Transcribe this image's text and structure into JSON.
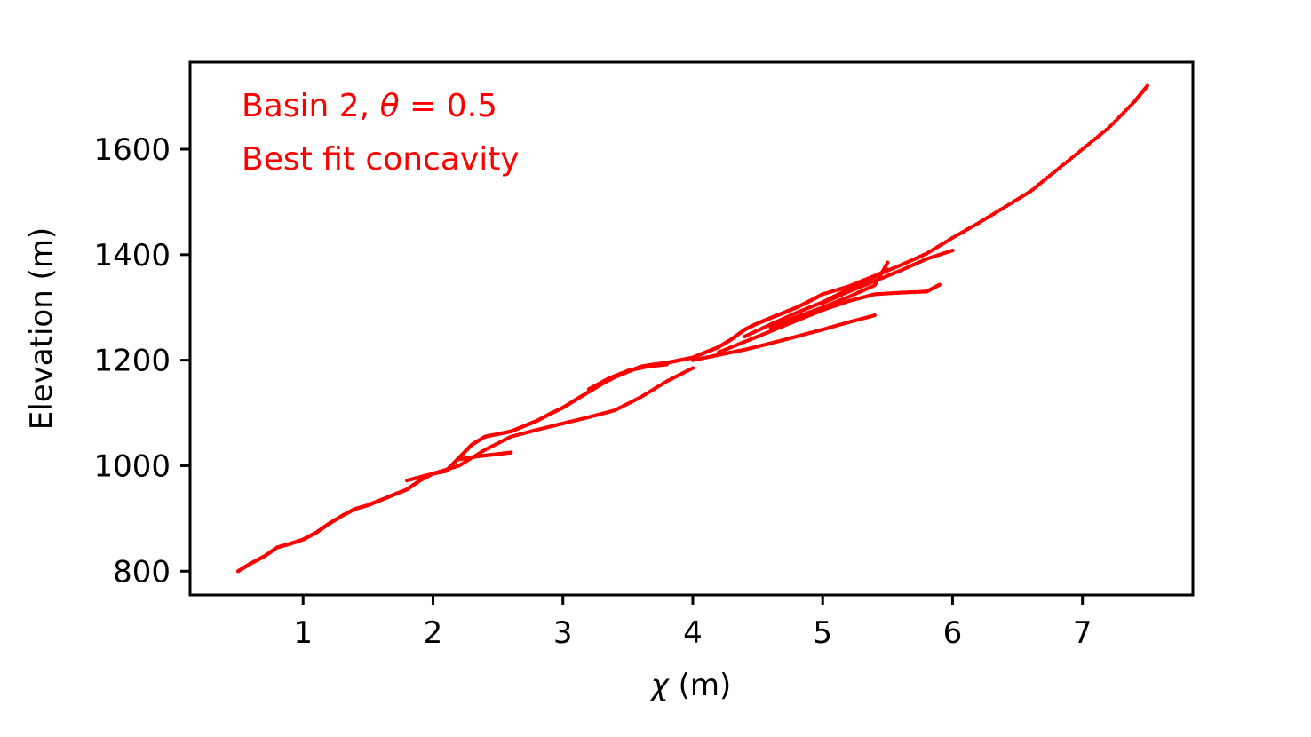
{
  "chart_data": {
    "type": "scatter",
    "xlabel_symbol": "χ",
    "xlabel_unit": " (m)",
    "ylabel": "Elevation (m)",
    "xlim": [
      0.13,
      7.85
    ],
    "ylim": [
      755,
      1765
    ],
    "xticks": [
      1,
      2,
      3,
      4,
      5,
      6,
      7
    ],
    "yticks": [
      800,
      1000,
      1200,
      1400,
      1600
    ],
    "grid": false,
    "marker_color": "#ff0000",
    "annotations": {
      "line1_prefix": "Basin 2, ",
      "line1_symbol": "θ",
      "line1_suffix": " = 0.5",
      "line2": "Best fit concavity"
    },
    "series": [
      {
        "x": [
          0.5,
          0.6,
          0.7,
          0.8,
          0.9,
          1.0,
          1.1,
          1.2,
          1.3,
          1.4,
          1.5,
          1.6,
          1.7,
          1.8,
          1.9,
          2.0,
          2.1,
          2.2,
          2.3,
          2.4,
          2.5,
          2.6,
          2.7,
          2.8,
          2.9,
          3.0,
          3.1,
          3.2,
          3.3,
          3.4,
          3.5,
          3.6,
          3.7,
          3.8,
          3.9,
          4.0,
          4.1,
          4.2,
          4.3,
          4.4,
          4.5,
          4.6,
          4.7,
          4.8,
          4.9,
          5.0,
          5.2,
          5.4,
          5.6,
          5.8,
          6.0,
          6.2,
          6.4,
          6.6,
          6.8,
          7.0,
          7.2,
          7.4,
          7.5
        ],
        "y": [
          800,
          815,
          828,
          845,
          852,
          860,
          873,
          890,
          905,
          918,
          925,
          935,
          945,
          955,
          972,
          985,
          990,
          1015,
          1040,
          1055,
          1060,
          1065,
          1075,
          1085,
          1098,
          1110,
          1125,
          1140,
          1155,
          1168,
          1178,
          1188,
          1192,
          1195,
          1200,
          1205,
          1215,
          1225,
          1240,
          1258,
          1270,
          1280,
          1290,
          1300,
          1312,
          1325,
          1340,
          1360,
          1380,
          1402,
          1432,
          1460,
          1490,
          1520,
          1560,
          1600,
          1640,
          1690,
          1720
        ]
      },
      {
        "x": [
          2.2,
          2.35,
          2.5,
          2.6
        ],
        "y": [
          1012,
          1018,
          1022,
          1025
        ]
      },
      {
        "x": [
          1.8,
          2.0,
          2.2,
          2.4,
          2.6,
          2.8,
          3.0,
          3.2,
          3.4,
          3.6,
          3.8,
          4.0
        ],
        "y": [
          972,
          985,
          1000,
          1030,
          1055,
          1068,
          1080,
          1092,
          1105,
          1130,
          1160,
          1185
        ]
      },
      {
        "x": [
          3.2,
          3.35,
          3.5,
          3.65,
          3.8
        ],
        "y": [
          1145,
          1165,
          1180,
          1188,
          1192
        ]
      },
      {
        "x": [
          4.0,
          4.2,
          4.4,
          4.6,
          4.8,
          5.0,
          5.2,
          5.4
        ],
        "y": [
          1200,
          1210,
          1220,
          1232,
          1245,
          1258,
          1272,
          1285
        ]
      },
      {
        "x": [
          4.2,
          4.4,
          4.6,
          4.8,
          5.0,
          5.2,
          5.4,
          5.6,
          5.8,
          5.9
        ],
        "y": [
          1215,
          1235,
          1255,
          1275,
          1295,
          1312,
          1325,
          1328,
          1330,
          1343
        ]
      },
      {
        "x": [
          4.4,
          4.6,
          4.8,
          5.0,
          5.2,
          5.4,
          5.5
        ],
        "y": [
          1245,
          1268,
          1290,
          1310,
          1335,
          1358,
          1372
        ]
      },
      {
        "x": [
          4.6,
          4.8,
          5.0,
          5.2,
          5.4,
          5.5
        ],
        "y": [
          1262,
          1282,
          1300,
          1320,
          1342,
          1385
        ]
      },
      {
        "x": [
          5.0,
          5.2,
          5.4,
          5.6,
          5.8,
          6.0
        ],
        "y": [
          1308,
          1330,
          1350,
          1370,
          1392,
          1408
        ]
      }
    ]
  }
}
